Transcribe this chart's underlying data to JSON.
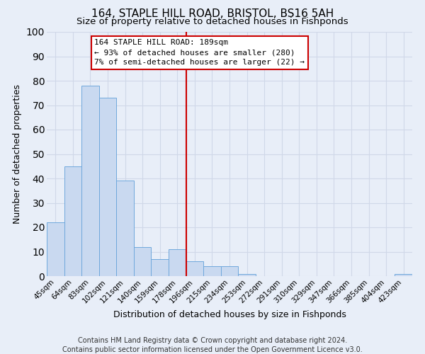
{
  "title": "164, STAPLE HILL ROAD, BRISTOL, BS16 5AH",
  "subtitle": "Size of property relative to detached houses in Fishponds",
  "xlabel": "Distribution of detached houses by size in Fishponds",
  "ylabel": "Number of detached properties",
  "bin_labels": [
    "45sqm",
    "64sqm",
    "83sqm",
    "102sqm",
    "121sqm",
    "140sqm",
    "159sqm",
    "178sqm",
    "196sqm",
    "215sqm",
    "234sqm",
    "253sqm",
    "272sqm",
    "291sqm",
    "310sqm",
    "329sqm",
    "347sqm",
    "366sqm",
    "385sqm",
    "404sqm",
    "423sqm"
  ],
  "bar_values": [
    22,
    45,
    78,
    73,
    39,
    12,
    7,
    11,
    6,
    4,
    4,
    1,
    0,
    0,
    0,
    0,
    0,
    0,
    0,
    0,
    1
  ],
  "bar_color": "#c9d9f0",
  "bar_edge_color": "#6fa8dc",
  "vline_x": 8,
  "vline_color": "#cc0000",
  "ylim": [
    0,
    100
  ],
  "yticks": [
    0,
    10,
    20,
    30,
    40,
    50,
    60,
    70,
    80,
    90,
    100
  ],
  "annotation_title": "164 STAPLE HILL ROAD: 189sqm",
  "annotation_line1": "← 93% of detached houses are smaller (280)",
  "annotation_line2": "7% of semi-detached houses are larger (22) →",
  "annotation_box_color": "#ffffff",
  "annotation_box_edge": "#cc0000",
  "footer1": "Contains HM Land Registry data © Crown copyright and database right 2024.",
  "footer2": "Contains public sector information licensed under the Open Government Licence v3.0.",
  "background_color": "#e8eef8",
  "grid_color": "#d0d8e8",
  "title_fontsize": 11,
  "subtitle_fontsize": 9.5,
  "axis_label_fontsize": 9,
  "tick_fontsize": 7.5,
  "footer_fontsize": 7
}
